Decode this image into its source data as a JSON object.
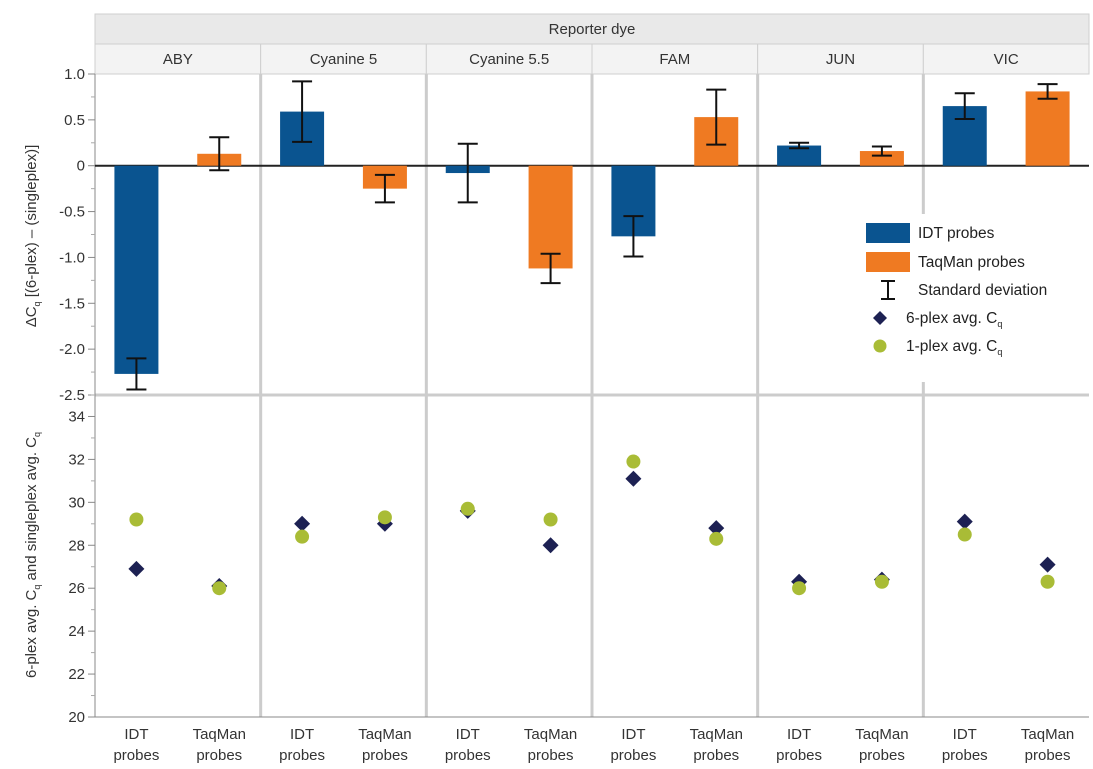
{
  "chart_data": {
    "type": "bar",
    "title": "",
    "facet_header": "Reporter dye",
    "facets": [
      "ABY",
      "Cyanine 5",
      "Cyanine 5.5",
      "FAM",
      "JUN",
      "VIC"
    ],
    "categories": [
      "IDT probes",
      "TaqMan probes"
    ],
    "category_label_lines": [
      [
        "IDT",
        "probes"
      ],
      [
        "TaqMan",
        "probes"
      ]
    ],
    "top_panel": {
      "ylabel_parts": [
        "ΔC",
        "q",
        " [(6-plex) – (singleplex)]"
      ],
      "ylim": [
        -2.5,
        1.0
      ],
      "ticks": [
        1.0,
        0.5,
        0,
        -0.5,
        -1.0,
        -1.5,
        -2.0,
        -2.5
      ],
      "tick_labels": [
        "1.0",
        "0.5",
        "0",
        "-0.5",
        "-1.0",
        "-1.5",
        "-2.0",
        "-2.5"
      ],
      "series": [
        {
          "name": "IDT probes",
          "values": [
            -2.27,
            0.59,
            -0.08,
            -0.77,
            0.22,
            0.65
          ],
          "sd": [
            0.17,
            0.33,
            0.32,
            0.22,
            0.03,
            0.14
          ]
        },
        {
          "name": "TaqMan probes",
          "values": [
            0.13,
            -0.25,
            -1.12,
            0.53,
            0.16,
            0.81
          ],
          "sd": [
            0.18,
            0.15,
            0.16,
            0.3,
            0.05,
            0.08
          ]
        }
      ]
    },
    "bottom_panel": {
      "ylabel_parts": [
        "6-plex avg. C",
        "q",
        " and singleplex avg. C",
        "q"
      ],
      "ylim": [
        20,
        35
      ],
      "ticks": [
        20,
        22,
        24,
        26,
        28,
        30,
        32,
        34
      ],
      "tick_labels": [
        "20",
        "22",
        "24",
        "26",
        "28",
        "30",
        "32",
        "34"
      ],
      "series": [
        {
          "name": "6-plex avg. Cq",
          "marker": "diamond",
          "values": [
            [
              26.9,
              26.1
            ],
            [
              29.0,
              29.0
            ],
            [
              29.6,
              28.0
            ],
            [
              31.1,
              28.8
            ],
            [
              26.3,
              26.4
            ],
            [
              29.1,
              27.1
            ]
          ]
        },
        {
          "name": "1-plex avg. Cq",
          "marker": "circle",
          "values": [
            [
              29.2,
              26.0
            ],
            [
              28.4,
              29.3
            ],
            [
              29.7,
              29.2
            ],
            [
              31.9,
              28.3
            ],
            [
              26.0,
              26.3
            ],
            [
              28.5,
              26.3
            ]
          ]
        }
      ]
    },
    "legend": {
      "placement": "right-inside-top-panel",
      "entries": [
        {
          "label": "IDT probes",
          "sub": "",
          "symbol": "bar-idt"
        },
        {
          "label": "TaqMan probes",
          "sub": "",
          "symbol": "bar-taqman"
        },
        {
          "label": "Standard deviation",
          "sub": "",
          "symbol": "errorbar"
        },
        {
          "label": "6-plex avg. C",
          "sub": "q",
          "symbol": "diamond"
        },
        {
          "label": "1-plex avg. C",
          "sub": "q",
          "symbol": "circle"
        }
      ]
    },
    "colors": {
      "idt": "#0a5490",
      "taqman": "#ef7a22",
      "diamond": "#1d2153",
      "circle": "#a9bc36",
      "facet_bg": "#e9e9e9",
      "facet_border": "#cfcfcf",
      "divider": "#cccccc"
    },
    "grid": false
  }
}
